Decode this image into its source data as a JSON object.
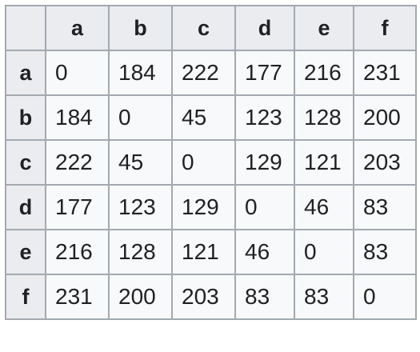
{
  "table": {
    "corner": "",
    "column_headers": [
      "a",
      "b",
      "c",
      "d",
      "e",
      "f"
    ],
    "rows": [
      {
        "header": "a",
        "cells": [
          "0",
          "184",
          "222",
          "177",
          "216",
          "231"
        ]
      },
      {
        "header": "b",
        "cells": [
          "184",
          "0",
          "45",
          "123",
          "128",
          "200"
        ]
      },
      {
        "header": "c",
        "cells": [
          "222",
          "45",
          "0",
          "129",
          "121",
          "203"
        ]
      },
      {
        "header": "d",
        "cells": [
          "177",
          "123",
          "129",
          "0",
          "46",
          "83"
        ]
      },
      {
        "header": "e",
        "cells": [
          "216",
          "128",
          "121",
          "46",
          "0",
          "83"
        ]
      },
      {
        "header": "f",
        "cells": [
          "231",
          "200",
          "203",
          "83",
          "83",
          "0"
        ]
      }
    ]
  }
}
